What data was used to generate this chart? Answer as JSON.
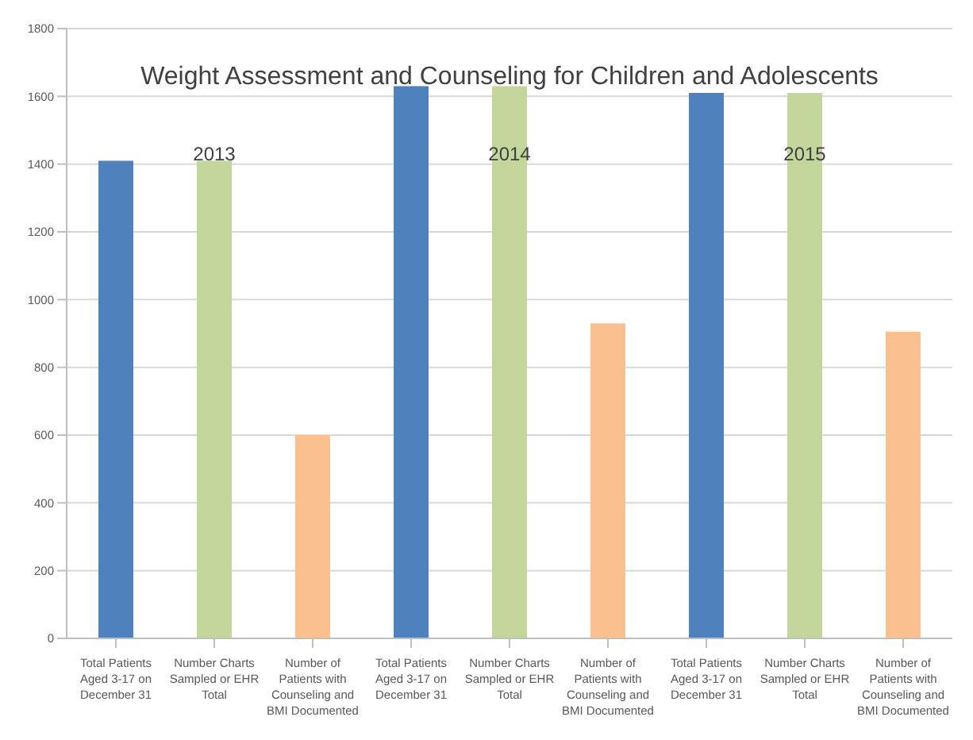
{
  "chart_data": {
    "type": "bar",
    "title": "Weight Assessment and Counseling for Children and Adolescents",
    "categories": [
      "Total Patients Aged 3-17 on December 31",
      "Number Charts Sampled or EHR Total",
      "Number of Patients with Counseling and BMI Documented",
      "Total Patients Aged 3-17 on December 31",
      "Number Charts Sampled or EHR Total",
      "Number of Patients with Counseling and BMI Documented",
      "Total Patients Aged 3-17 on December 31",
      "Number Charts Sampled or EHR Total",
      "Number of Patients with Counseling and BMI Documented"
    ],
    "values": [
      1410,
      1410,
      600,
      1630,
      1630,
      930,
      1610,
      1610,
      905
    ],
    "colors": [
      "#4f81bd",
      "#c3d69b",
      "#fac090",
      "#4f81bd",
      "#c3d69b",
      "#fac090",
      "#4f81bd",
      "#c3d69b",
      "#fac090"
    ],
    "annotations": [
      "2013",
      "2014",
      "2015"
    ],
    "ylim": [
      0,
      1800
    ],
    "yticks": [
      0,
      200,
      400,
      600,
      800,
      1000,
      1200,
      1400,
      1600,
      1800
    ],
    "grid": "y"
  }
}
